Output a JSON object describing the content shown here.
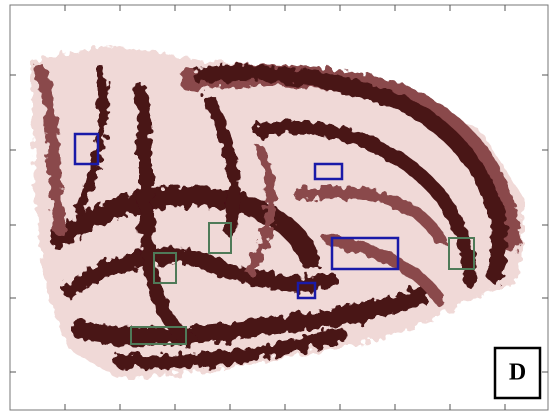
{
  "panel": {
    "label": "D"
  }
}
